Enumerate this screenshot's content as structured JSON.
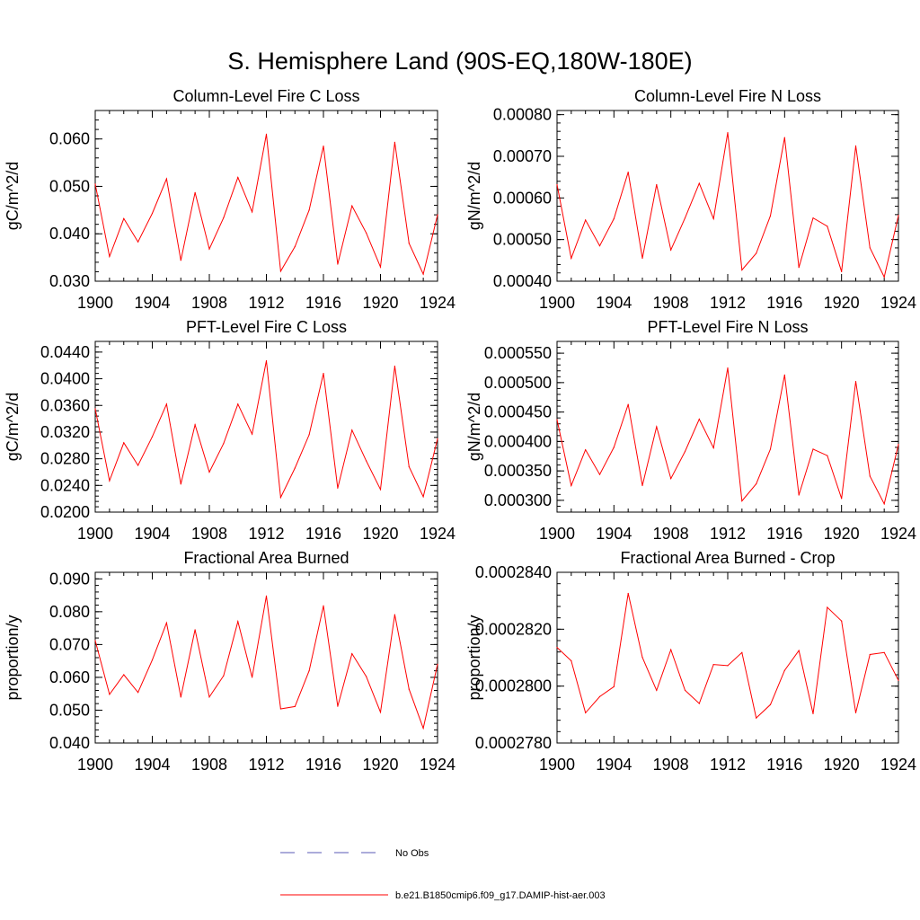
{
  "figure": {
    "title": "S. Hemisphere Land (90S-EQ,180W-180E)"
  },
  "legend": {
    "entries": [
      {
        "label": "No Obs",
        "color": "#5a5ab4",
        "dash": "dashed"
      },
      {
        "label": "b.e21.B1850cmip6.f09_g17.DAMIP-hist-aer.003",
        "color": "#ff0000",
        "dash": "solid"
      }
    ]
  },
  "chart_data": [
    {
      "type": "line",
      "title": "Column-Level Fire C Loss",
      "ylabel": "gC/m^2/d",
      "xlim": [
        1900,
        1924
      ],
      "ylim": [
        0.03,
        0.066
      ],
      "xticks": [
        "1900",
        "1904",
        "1908",
        "1912",
        "1916",
        "1920",
        "1924"
      ],
      "xtick_values": [
        1900,
        1904,
        1908,
        1912,
        1916,
        1920,
        1924
      ],
      "yticks": [
        "0.030",
        "0.040",
        "0.050",
        "0.060"
      ],
      "ytick_values": [
        0.03,
        0.04,
        0.05,
        0.06
      ],
      "minor_ystep": 0.002,
      "series": [
        {
          "color": "#ff0000",
          "x": [
            1900,
            1901,
            1902,
            1903,
            1904,
            1905,
            1906,
            1907,
            1908,
            1909,
            1910,
            1911,
            1912,
            1913,
            1914,
            1915,
            1916,
            1917,
            1918,
            1919,
            1920,
            1921,
            1922,
            1923,
            1924
          ],
          "values": [
            0.0505,
            0.0352,
            0.0432,
            0.0383,
            0.0443,
            0.0516,
            0.0344,
            0.0487,
            0.0368,
            0.0434,
            0.0519,
            0.0446,
            0.061,
            0.0321,
            0.0373,
            0.045,
            0.0585,
            0.0336,
            0.0459,
            0.0402,
            0.033,
            0.0593,
            0.038,
            0.0315,
            0.044
          ]
        }
      ]
    },
    {
      "type": "line",
      "title": "Column-Level Fire N Loss",
      "ylabel": "gN/m^2/d",
      "xlim": [
        1900,
        1924
      ],
      "ylim": [
        0.0004,
        0.00081
      ],
      "xticks": [
        "1900",
        "1904",
        "1908",
        "1912",
        "1916",
        "1920",
        "1924"
      ],
      "xtick_values": [
        1900,
        1904,
        1908,
        1912,
        1916,
        1920,
        1924
      ],
      "yticks": [
        "0.00040",
        "0.00050",
        "0.00060",
        "0.00070",
        "0.00080"
      ],
      "ytick_values": [
        0.0004,
        0.0005,
        0.0006,
        0.0007,
        0.0008
      ],
      "minor_ystep": 2e-05,
      "series": [
        {
          "color": "#ff0000",
          "x": [
            1900,
            1901,
            1902,
            1903,
            1904,
            1905,
            1906,
            1907,
            1908,
            1909,
            1910,
            1911,
            1912,
            1913,
            1914,
            1915,
            1916,
            1917,
            1918,
            1919,
            1920,
            1921,
            1922,
            1923,
            1924
          ],
          "values": [
            0.000632,
            0.000455,
            0.000547,
            0.000485,
            0.00055,
            0.000662,
            0.000455,
            0.000632,
            0.000475,
            0.000552,
            0.000635,
            0.00055,
            0.000757,
            0.000427,
            0.000467,
            0.000557,
            0.000745,
            0.000433,
            0.000552,
            0.000532,
            0.000423,
            0.000725,
            0.00048,
            0.00041,
            0.000558
          ]
        }
      ]
    },
    {
      "type": "line",
      "title": "PFT-Level Fire C Loss",
      "ylabel": "gC/m^2/d",
      "xlim": [
        1900,
        1924
      ],
      "ylim": [
        0.02,
        0.0456
      ],
      "xticks": [
        "1900",
        "1904",
        "1908",
        "1912",
        "1916",
        "1920",
        "1924"
      ],
      "xtick_values": [
        1900,
        1904,
        1908,
        1912,
        1916,
        1920,
        1924
      ],
      "yticks": [
        "0.0200",
        "0.0240",
        "0.0280",
        "0.0320",
        "0.0360",
        "0.0400",
        "0.0440"
      ],
      "ytick_values": [
        0.02,
        0.024,
        0.028,
        0.032,
        0.036,
        0.04,
        0.044
      ],
      "minor_ystep": 0.0008,
      "series": [
        {
          "color": "#ff0000",
          "x": [
            1900,
            1901,
            1902,
            1903,
            1904,
            1905,
            1906,
            1907,
            1908,
            1909,
            1910,
            1911,
            1912,
            1913,
            1914,
            1915,
            1916,
            1917,
            1918,
            1919,
            1920,
            1921,
            1922,
            1923,
            1924
          ],
          "values": [
            0.0355,
            0.0247,
            0.0304,
            0.027,
            0.0313,
            0.0362,
            0.0242,
            0.0331,
            0.026,
            0.0303,
            0.0362,
            0.0317,
            0.0427,
            0.0222,
            0.0266,
            0.0316,
            0.0408,
            0.0236,
            0.0323,
            0.0277,
            0.0234,
            0.0419,
            0.0268,
            0.0223,
            0.031
          ]
        }
      ]
    },
    {
      "type": "line",
      "title": "PFT-Level Fire N Loss",
      "ylabel": "gN/m^2/d",
      "xlim": [
        1900,
        1924
      ],
      "ylim": [
        0.00028,
        0.00057
      ],
      "xticks": [
        "1900",
        "1904",
        "1908",
        "1912",
        "1916",
        "1920",
        "1924"
      ],
      "xtick_values": [
        1900,
        1904,
        1908,
        1912,
        1916,
        1920,
        1924
      ],
      "yticks": [
        "0.000300",
        "0.000350",
        "0.000400",
        "0.000450",
        "0.000500",
        "0.000550"
      ],
      "ytick_values": [
        0.0003,
        0.00035,
        0.0004,
        0.00045,
        0.0005,
        0.00055
      ],
      "minor_ystep": 1e-05,
      "series": [
        {
          "color": "#ff0000",
          "x": [
            1900,
            1901,
            1902,
            1903,
            1904,
            1905,
            1906,
            1907,
            1908,
            1909,
            1910,
            1911,
            1912,
            1913,
            1914,
            1915,
            1916,
            1917,
            1918,
            1919,
            1920,
            1921,
            1922,
            1923,
            1924
          ],
          "values": [
            0.000437,
            0.000325,
            0.000386,
            0.000344,
            0.00039,
            0.000463,
            0.000325,
            0.000425,
            0.000337,
            0.000383,
            0.000438,
            0.000389,
            0.000525,
            0.000299,
            0.000328,
            0.000387,
            0.000513,
            0.000309,
            0.000387,
            0.000376,
            0.000303,
            0.000502,
            0.000341,
            0.000294,
            0.000395
          ]
        }
      ]
    },
    {
      "type": "line",
      "title": "Fractional Area Burned",
      "ylabel": "proportion/y",
      "xlim": [
        1900,
        1924
      ],
      "ylim": [
        0.04,
        0.092
      ],
      "xticks": [
        "1900",
        "1904",
        "1908",
        "1912",
        "1916",
        "1920",
        "1924"
      ],
      "xtick_values": [
        1900,
        1904,
        1908,
        1912,
        1916,
        1920,
        1924
      ],
      "yticks": [
        "0.040",
        "0.050",
        "0.060",
        "0.070",
        "0.080",
        "0.090"
      ],
      "ytick_values": [
        0.04,
        0.05,
        0.06,
        0.07,
        0.08,
        0.09
      ],
      "minor_ystep": 0.002,
      "series": [
        {
          "color": "#ff0000",
          "x": [
            1900,
            1901,
            1902,
            1903,
            1904,
            1905,
            1906,
            1907,
            1908,
            1909,
            1910,
            1911,
            1912,
            1913,
            1914,
            1915,
            1916,
            1917,
            1918,
            1919,
            1920,
            1921,
            1922,
            1923,
            1924
          ],
          "values": [
            0.0712,
            0.0548,
            0.0608,
            0.0554,
            0.0653,
            0.0766,
            0.054,
            0.0745,
            0.054,
            0.0605,
            0.077,
            0.06,
            0.0848,
            0.0504,
            0.0511,
            0.062,
            0.0818,
            0.0512,
            0.0672,
            0.0603,
            0.0494,
            0.0791,
            0.0564,
            0.0445,
            0.064
          ]
        }
      ]
    },
    {
      "type": "line",
      "title": "Fractional Area Burned - Crop",
      "ylabel": "proportion/y",
      "xlim": [
        1900,
        1924
      ],
      "ylim": [
        0.000278,
        0.000284
      ],
      "xticks": [
        "1900",
        "1904",
        "1908",
        "1912",
        "1916",
        "1920",
        "1924"
      ],
      "xtick_values": [
        1900,
        1904,
        1908,
        1912,
        1916,
        1920,
        1924
      ],
      "yticks": [
        "0.0002780",
        "0.0002800",
        "0.0002820",
        "0.0002840"
      ],
      "ytick_values": [
        0.000278,
        0.00028,
        0.000282,
        0.000284
      ],
      "minor_ystep": 4e-07,
      "series": [
        {
          "color": "#ff0000",
          "x": [
            1900,
            1901,
            1902,
            1903,
            1904,
            1905,
            1906,
            1907,
            1908,
            1909,
            1910,
            1911,
            1912,
            1913,
            1914,
            1915,
            1916,
            1917,
            1918,
            1919,
            1920,
            1921,
            1922,
            1923,
            1924
          ],
          "values": [
            0.00028136,
            0.00028089,
            0.00027906,
            0.00027963,
            0.00027998,
            0.00028326,
            0.00028101,
            0.00027985,
            0.00028128,
            0.00027985,
            0.00027939,
            0.00028076,
            0.00028072,
            0.00028118,
            0.00027888,
            0.00027935,
            0.00028055,
            0.00028125,
            0.00027903,
            0.00028277,
            0.00028229,
            0.00027906,
            0.00028111,
            0.00028118,
            0.0002802
          ]
        }
      ]
    }
  ]
}
